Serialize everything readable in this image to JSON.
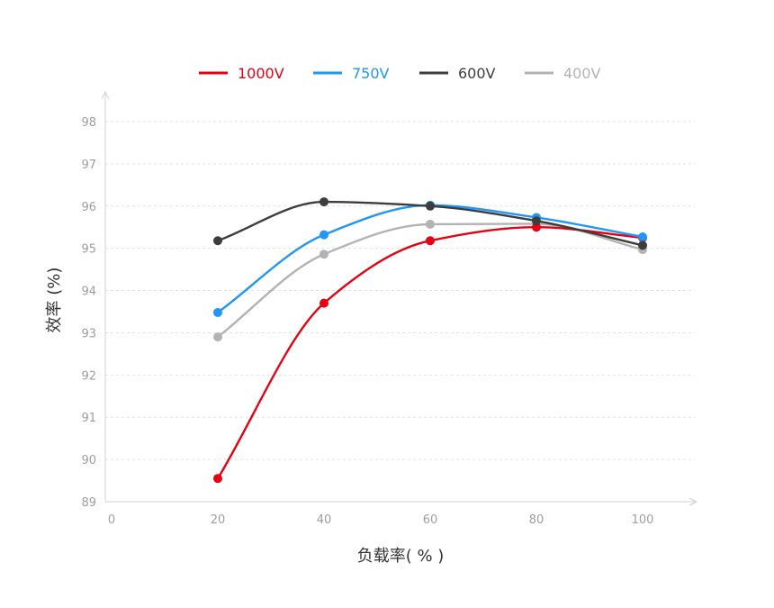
{
  "chart_data": {
    "type": "line",
    "title": "",
    "xlabel": "负载率( % )",
    "ylabel": "效率 (%)",
    "x": [
      20,
      40,
      60,
      80,
      100
    ],
    "xlim": [
      0,
      110
    ],
    "ylim": [
      89,
      98.6
    ],
    "xticks": [
      0,
      20,
      40,
      60,
      80,
      100
    ],
    "yticks": [
      89,
      90,
      91,
      92,
      93,
      94,
      95,
      96,
      97,
      98
    ],
    "grid": "horizontal-dashed",
    "legend_position": "top-center",
    "series": [
      {
        "name": "1000V",
        "color": "#e60012",
        "values": [
          89.55,
          93.7,
          95.18,
          95.5,
          95.25
        ]
      },
      {
        "name": "750V",
        "color": "#2196f3",
        "values": [
          93.48,
          95.32,
          96.02,
          95.73,
          95.27
        ]
      },
      {
        "name": "600V",
        "color": "#3d3d3d",
        "values": [
          95.18,
          96.1,
          96.0,
          95.65,
          95.07
        ]
      },
      {
        "name": "400V",
        "color": "#b3b3b3",
        "values": [
          92.9,
          94.86,
          95.57,
          95.58,
          94.97
        ]
      }
    ]
  }
}
